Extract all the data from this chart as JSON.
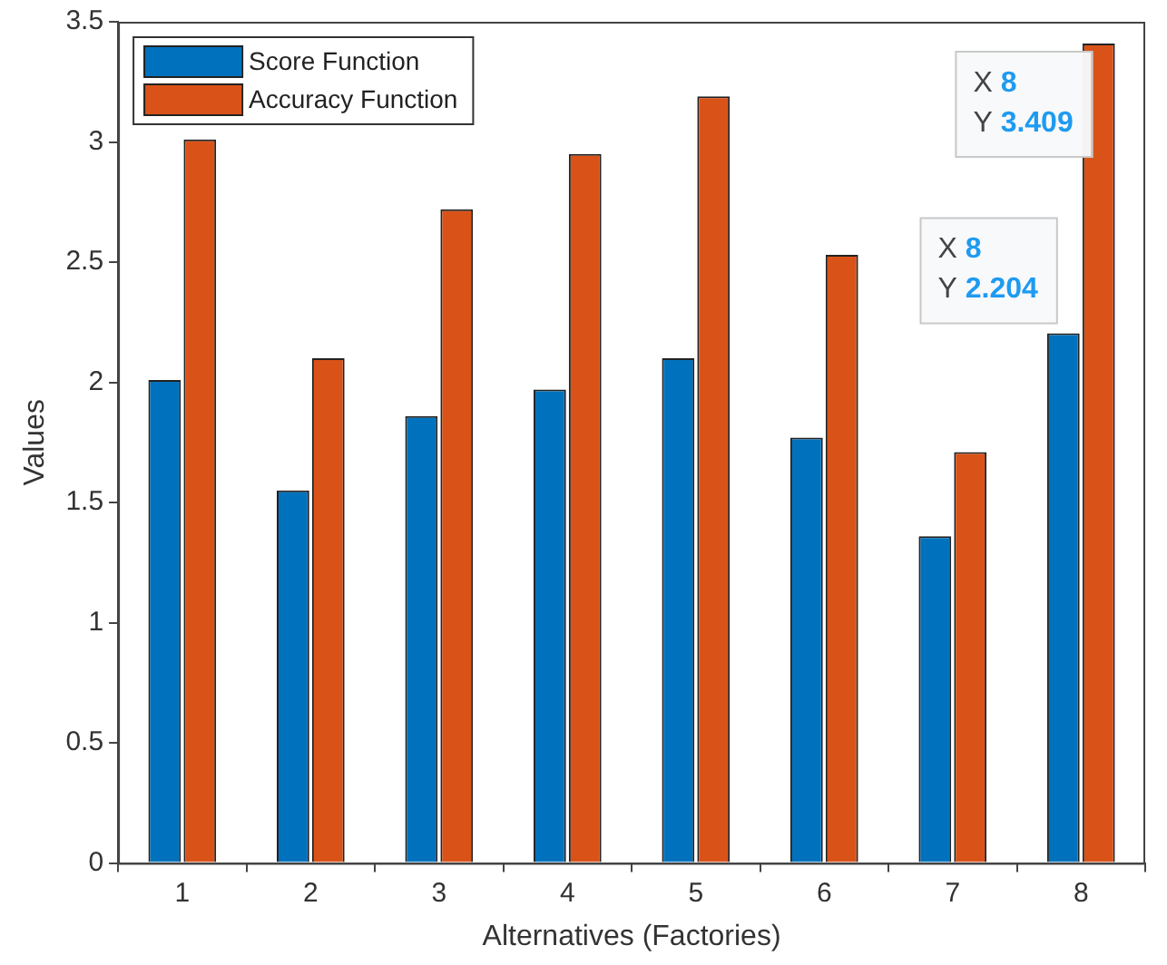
{
  "chart_data": {
    "type": "bar",
    "xlabel": "Alternatives (Factories)",
    "ylabel": "Values",
    "categories": [
      "1",
      "2",
      "3",
      "4",
      "5",
      "6",
      "7",
      "8"
    ],
    "series": [
      {
        "name": "Score Function",
        "color": "#0072bd",
        "values": [
          2.01,
          1.55,
          1.86,
          1.97,
          2.1,
          1.77,
          1.36,
          2.204
        ]
      },
      {
        "name": "Accuracy Function",
        "color": "#d95319",
        "values": [
          3.01,
          2.1,
          2.72,
          2.95,
          3.19,
          2.53,
          1.71,
          3.409
        ]
      }
    ],
    "ylim": [
      0,
      3.5
    ],
    "yticks": [
      0,
      0.5,
      1,
      1.5,
      2,
      2.5,
      3,
      3.5
    ],
    "grid": false,
    "legend": "top left",
    "annotations": [
      {
        "text": "X 8\nY 3.409",
        "x": "8",
        "y": 3.409
      },
      {
        "text": "X 8\nY 2.204",
        "x": "8",
        "y": 2.204
      }
    ]
  }
}
